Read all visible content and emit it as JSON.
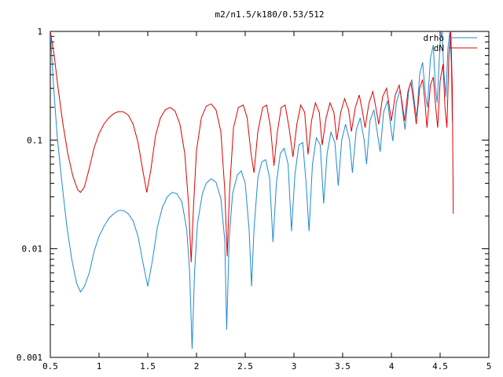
{
  "chart_data": {
    "type": "line",
    "title": "m2/n1.5/k180/0.53/512",
    "xlabel": "",
    "ylabel": "",
    "xlim": [
      0.5,
      5
    ],
    "ylim": [
      0.001,
      1
    ],
    "yscale": "log",
    "grid": false,
    "legend_position": "top-right",
    "x_ticks": [
      {
        "value": 0.5,
        "label": "0.5"
      },
      {
        "value": 1,
        "label": "1"
      },
      {
        "value": 1.5,
        "label": "1.5"
      },
      {
        "value": 2,
        "label": "2"
      },
      {
        "value": 2.5,
        "label": "2.5"
      },
      {
        "value": 3,
        "label": "3"
      },
      {
        "value": 3.5,
        "label": "3.5"
      },
      {
        "value": 4,
        "label": "4"
      },
      {
        "value": 4.5,
        "label": "4.5"
      },
      {
        "value": 5,
        "label": "5"
      }
    ],
    "y_ticks": [
      {
        "value": 1,
        "label": "1"
      },
      {
        "value": 0.1,
        "label": "0.1"
      },
      {
        "value": 0.01,
        "label": "0.01"
      },
      {
        "value": 0.001,
        "label": "0.001"
      }
    ],
    "series": [
      {
        "name": "drho",
        "color": "#1f8ad4",
        "points": [
          [
            0.5,
            1.0
          ],
          [
            0.53,
            0.35
          ],
          [
            0.57,
            0.11
          ],
          [
            0.62,
            0.04
          ],
          [
            0.67,
            0.016
          ],
          [
            0.72,
            0.008
          ],
          [
            0.77,
            0.0048
          ],
          [
            0.81,
            0.004
          ],
          [
            0.85,
            0.0045
          ],
          [
            0.9,
            0.006
          ],
          [
            0.95,
            0.0095
          ],
          [
            1.0,
            0.013
          ],
          [
            1.05,
            0.016
          ],
          [
            1.1,
            0.019
          ],
          [
            1.15,
            0.021
          ],
          [
            1.2,
            0.0225
          ],
          [
            1.25,
            0.0225
          ],
          [
            1.3,
            0.021
          ],
          [
            1.35,
            0.018
          ],
          [
            1.4,
            0.013
          ],
          [
            1.45,
            0.0075
          ],
          [
            1.5,
            0.0045
          ],
          [
            1.55,
            0.008
          ],
          [
            1.6,
            0.016
          ],
          [
            1.65,
            0.024
          ],
          [
            1.7,
            0.03
          ],
          [
            1.75,
            0.033
          ],
          [
            1.8,
            0.032
          ],
          [
            1.85,
            0.027
          ],
          [
            1.9,
            0.015
          ],
          [
            1.93,
            0.006
          ],
          [
            1.955,
            0.0012
          ],
          [
            1.98,
            0.006
          ],
          [
            2.01,
            0.017
          ],
          [
            2.06,
            0.032
          ],
          [
            2.1,
            0.04
          ],
          [
            2.15,
            0.044
          ],
          [
            2.2,
            0.041
          ],
          [
            2.25,
            0.029
          ],
          [
            2.29,
            0.012
          ],
          [
            2.31,
            0.0018
          ],
          [
            2.335,
            0.012
          ],
          [
            2.37,
            0.032
          ],
          [
            2.42,
            0.048
          ],
          [
            2.46,
            0.052
          ],
          [
            2.5,
            0.04
          ],
          [
            2.54,
            0.015
          ],
          [
            2.565,
            0.0045
          ],
          [
            2.59,
            0.015
          ],
          [
            2.63,
            0.045
          ],
          [
            2.67,
            0.063
          ],
          [
            2.71,
            0.066
          ],
          [
            2.75,
            0.045
          ],
          [
            2.785,
            0.0115
          ],
          [
            2.82,
            0.04
          ],
          [
            2.86,
            0.075
          ],
          [
            2.9,
            0.084
          ],
          [
            2.94,
            0.06
          ],
          [
            2.975,
            0.0145
          ],
          [
            3.01,
            0.048
          ],
          [
            3.05,
            0.09
          ],
          [
            3.09,
            0.095
          ],
          [
            3.125,
            0.04
          ],
          [
            3.155,
            0.0145
          ],
          [
            3.19,
            0.06
          ],
          [
            3.23,
            0.105
          ],
          [
            3.27,
            0.09
          ],
          [
            3.305,
            0.026
          ],
          [
            3.34,
            0.075
          ],
          [
            3.38,
            0.118
          ],
          [
            3.42,
            0.095
          ],
          [
            3.455,
            0.038
          ],
          [
            3.49,
            0.1
          ],
          [
            3.53,
            0.14
          ],
          [
            3.57,
            0.1
          ],
          [
            3.6,
            0.05
          ],
          [
            3.64,
            0.125
          ],
          [
            3.68,
            0.16
          ],
          [
            3.72,
            0.1
          ],
          [
            3.745,
            0.06
          ],
          [
            3.78,
            0.15
          ],
          [
            3.82,
            0.19
          ],
          [
            3.86,
            0.11
          ],
          [
            3.885,
            0.078
          ],
          [
            3.92,
            0.18
          ],
          [
            3.96,
            0.23
          ],
          [
            3.99,
            0.14
          ],
          [
            4.015,
            0.098
          ],
          [
            4.05,
            0.22
          ],
          [
            4.09,
            0.29
          ],
          [
            4.12,
            0.17
          ],
          [
            4.14,
            0.125
          ],
          [
            4.18,
            0.3
          ],
          [
            4.21,
            0.36
          ],
          [
            4.24,
            0.21
          ],
          [
            4.26,
            0.16
          ],
          [
            4.29,
            0.4
          ],
          [
            4.32,
            0.52
          ],
          [
            4.35,
            0.26
          ],
          [
            4.37,
            0.2
          ],
          [
            4.4,
            0.56
          ],
          [
            4.43,
            0.75
          ],
          [
            4.45,
            0.32
          ],
          [
            4.47,
            0.22
          ],
          [
            4.5,
            0.8
          ],
          [
            4.52,
            1.0
          ],
          [
            4.54,
            0.4
          ],
          [
            4.56,
            0.25
          ],
          [
            4.58,
            0.7
          ],
          [
            4.6,
            1.0
          ],
          [
            4.615,
            0.5
          ],
          [
            4.625,
            0.15
          ]
        ]
      },
      {
        "name": "dN",
        "color": "#e00000",
        "points": [
          [
            0.5,
            1.0
          ],
          [
            0.54,
            0.6
          ],
          [
            0.58,
            0.3
          ],
          [
            0.63,
            0.14
          ],
          [
            0.68,
            0.075
          ],
          [
            0.73,
            0.047
          ],
          [
            0.78,
            0.035
          ],
          [
            0.81,
            0.033
          ],
          [
            0.85,
            0.037
          ],
          [
            0.9,
            0.055
          ],
          [
            0.95,
            0.085
          ],
          [
            1.0,
            0.115
          ],
          [
            1.05,
            0.14
          ],
          [
            1.1,
            0.16
          ],
          [
            1.15,
            0.175
          ],
          [
            1.2,
            0.183
          ],
          [
            1.25,
            0.182
          ],
          [
            1.3,
            0.17
          ],
          [
            1.35,
            0.14
          ],
          [
            1.4,
            0.095
          ],
          [
            1.45,
            0.052
          ],
          [
            1.49,
            0.033
          ],
          [
            1.53,
            0.052
          ],
          [
            1.58,
            0.11
          ],
          [
            1.63,
            0.16
          ],
          [
            1.68,
            0.19
          ],
          [
            1.73,
            0.2
          ],
          [
            1.78,
            0.185
          ],
          [
            1.83,
            0.14
          ],
          [
            1.88,
            0.075
          ],
          [
            1.92,
            0.025
          ],
          [
            1.945,
            0.0075
          ],
          [
            1.97,
            0.025
          ],
          [
            2.0,
            0.08
          ],
          [
            2.05,
            0.16
          ],
          [
            2.1,
            0.205
          ],
          [
            2.15,
            0.215
          ],
          [
            2.2,
            0.19
          ],
          [
            2.25,
            0.12
          ],
          [
            2.29,
            0.035
          ],
          [
            2.315,
            0.0085
          ],
          [
            2.34,
            0.035
          ],
          [
            2.38,
            0.13
          ],
          [
            2.43,
            0.2
          ],
          [
            2.48,
            0.21
          ],
          [
            2.52,
            0.16
          ],
          [
            2.56,
            0.075
          ],
          [
            2.59,
            0.05
          ],
          [
            2.63,
            0.12
          ],
          [
            2.68,
            0.2
          ],
          [
            2.72,
            0.21
          ],
          [
            2.76,
            0.13
          ],
          [
            2.795,
            0.058
          ],
          [
            2.83,
            0.12
          ],
          [
            2.87,
            0.2
          ],
          [
            2.91,
            0.21
          ],
          [
            2.95,
            0.13
          ],
          [
            2.99,
            0.07
          ],
          [
            3.03,
            0.14
          ],
          [
            3.07,
            0.21
          ],
          [
            3.11,
            0.18
          ],
          [
            3.145,
            0.074
          ],
          [
            3.18,
            0.15
          ],
          [
            3.22,
            0.22
          ],
          [
            3.26,
            0.18
          ],
          [
            3.29,
            0.09
          ],
          [
            3.33,
            0.16
          ],
          [
            3.37,
            0.22
          ],
          [
            3.41,
            0.18
          ],
          [
            3.44,
            0.1
          ],
          [
            3.48,
            0.18
          ],
          [
            3.52,
            0.24
          ],
          [
            3.56,
            0.19
          ],
          [
            3.59,
            0.12
          ],
          [
            3.63,
            0.2
          ],
          [
            3.67,
            0.26
          ],
          [
            3.7,
            0.19
          ],
          [
            3.73,
            0.13
          ],
          [
            3.77,
            0.22
          ],
          [
            3.81,
            0.28
          ],
          [
            3.84,
            0.2
          ],
          [
            3.87,
            0.14
          ],
          [
            3.91,
            0.25
          ],
          [
            3.95,
            0.3
          ],
          [
            3.98,
            0.2
          ],
          [
            4.0,
            0.15
          ],
          [
            4.04,
            0.26
          ],
          [
            4.08,
            0.32
          ],
          [
            4.11,
            0.22
          ],
          [
            4.135,
            0.15
          ],
          [
            4.17,
            0.28
          ],
          [
            4.2,
            0.34
          ],
          [
            4.23,
            0.22
          ],
          [
            4.255,
            0.14
          ],
          [
            4.29,
            0.3
          ],
          [
            4.32,
            0.36
          ],
          [
            4.345,
            0.22
          ],
          [
            4.365,
            0.13
          ],
          [
            4.4,
            0.32
          ],
          [
            4.43,
            0.38
          ],
          [
            4.455,
            0.2
          ],
          [
            4.475,
            0.13
          ],
          [
            4.5,
            0.35
          ],
          [
            4.53,
            0.5
          ],
          [
            4.55,
            0.2
          ],
          [
            4.57,
            0.13
          ],
          [
            4.59,
            0.6
          ],
          [
            4.61,
            1.0
          ],
          [
            4.625,
            0.3
          ],
          [
            4.635,
            0.021
          ]
        ]
      }
    ]
  }
}
